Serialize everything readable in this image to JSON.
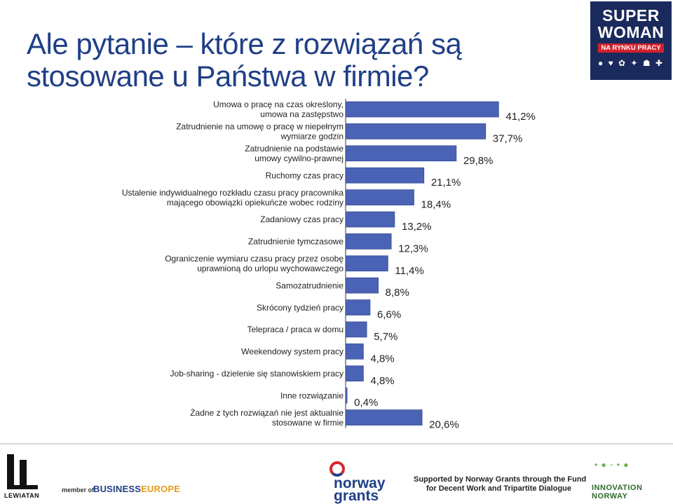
{
  "slide": {
    "title_line1": "Ale pytanie – które z rozwiązań są",
    "title_line2": "stosowane u Państwa w firmie?"
  },
  "logos": {
    "superwoman_line1": "SUPER",
    "superwoman_line2": "WOMAN",
    "superwoman_line3": "NA RYNKU PRACY",
    "lewiatan": "LEWIATAN",
    "member_of": "member of",
    "businesseurope_a": "BUSINESS",
    "businesseurope_b": "EUROPE",
    "norway_grants_1": "norway",
    "norway_grants_2": "grants",
    "supported_line1": "Supported by Norway Grants through the Fund",
    "supported_line2": "for Decent Work and Tripartite Dialogue",
    "innovation_1": "INNOVATION",
    "innovation_2": "NORWAY"
  },
  "chart_data": {
    "type": "bar",
    "orientation": "horizontal",
    "bar_color": "#4a63b5",
    "label_color": "#222222",
    "xlim": [
      0,
      45
    ],
    "grid": false,
    "categories": [
      [
        "Umowa o pracę na czas określony,",
        "umowa na zastępstwo"
      ],
      [
        "Zatrudnienie na umowę o pracę w niepełnym",
        "wymiarze godzin"
      ],
      [
        "Zatrudnienie na podstawie",
        "umowy cywilno-prawnej"
      ],
      [
        "Ruchomy czas pracy"
      ],
      [
        "Ustalenie indywidualnego rozkładu czasu pracy pracownika",
        "mającego obowiązki opiekuńcze wobec rodziny"
      ],
      [
        "Zadaniowy czas pracy"
      ],
      [
        "Zatrudnienie tymczasowe"
      ],
      [
        "Ograniczenie wymiaru czasu pracy przez osobę",
        "uprawnioną do urlopu wychowawczego"
      ],
      [
        "Samozatrudnienie"
      ],
      [
        "Skrócony tydzień pracy"
      ],
      [
        "Telepraca / praca w domu"
      ],
      [
        "Weekendowy system pracy"
      ],
      [
        "Job-sharing - dzielenie się stanowiskiem pracy"
      ],
      [
        "Inne rozwiązanie"
      ],
      [
        "Żadne z tych rozwiązań nie jest aktualnie",
        "stosowane w firmie"
      ]
    ],
    "values": [
      41.2,
      37.7,
      29.8,
      21.1,
      18.4,
      13.2,
      12.3,
      11.4,
      8.8,
      6.6,
      5.7,
      4.8,
      4.8,
      0.4,
      20.6
    ],
    "value_labels": [
      "41,2%",
      "37,7%",
      "29,8%",
      "21,1%",
      "18,4%",
      "13,2%",
      "12,3%",
      "11,4%",
      "8,8%",
      "6,6%",
      "5,7%",
      "4,8%",
      "4,8%",
      "0,4%",
      "20,6%"
    ]
  }
}
